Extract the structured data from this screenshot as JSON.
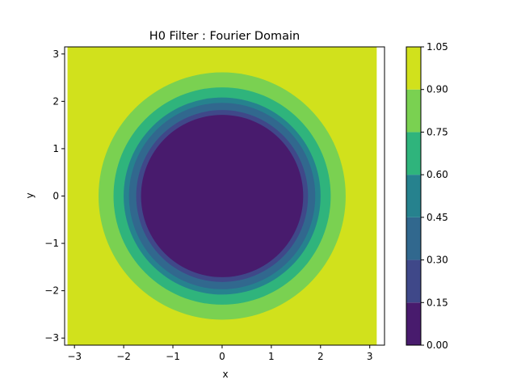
{
  "chart_data": {
    "type": "heatmap",
    "subtype": "filled-contour",
    "title": "H0 Filter : Fourier Domain",
    "xlabel": "x",
    "ylabel": "y",
    "xlim": [
      -3.2,
      3.3
    ],
    "ylim": [
      -3.15,
      3.15
    ],
    "data_extent": {
      "x": [
        -3.1416,
        3.1416
      ],
      "y": [
        -3.1416,
        3.1416
      ]
    },
    "x_ticks": [
      -3,
      -2,
      -1,
      0,
      1,
      2,
      3
    ],
    "x_tick_labels": [
      "−3",
      "−2",
      "−1",
      "0",
      "1",
      "2",
      "3"
    ],
    "y_ticks": [
      -3,
      -2,
      -1,
      0,
      1,
      2,
      3
    ],
    "y_tick_labels": [
      "−3",
      "−2",
      "−1",
      "0",
      "1",
      "2",
      "3"
    ],
    "radial_levels": [
      {
        "range": [
          0.0,
          0.15
        ],
        "r_max": 1.68
      },
      {
        "range": [
          0.15,
          0.3
        ],
        "r_max": 1.78
      },
      {
        "range": [
          0.3,
          0.45
        ],
        "r_max": 1.93
      },
      {
        "range": [
          0.45,
          0.6
        ],
        "r_max": 2.04
      },
      {
        "range": [
          0.6,
          0.75
        ],
        "r_max": 2.25
      },
      {
        "range": [
          0.75,
          0.9
        ],
        "r_max": 2.56
      },
      {
        "range": [
          0.9,
          1.05
        ],
        "r_max": null
      }
    ],
    "colorbar": {
      "levels": [
        0.0,
        0.15,
        0.3,
        0.45,
        0.6,
        0.75,
        0.9,
        1.05
      ],
      "tick_labels": [
        "0.00",
        "0.15",
        "0.30",
        "0.45",
        "0.60",
        "0.75",
        "0.90",
        "1.05"
      ],
      "colors": [
        "#481b6d",
        "#3f4889",
        "#31688e",
        "#26828e",
        "#2fb47c",
        "#7ad151",
        "#d1e11c"
      ]
    },
    "grid": false
  }
}
